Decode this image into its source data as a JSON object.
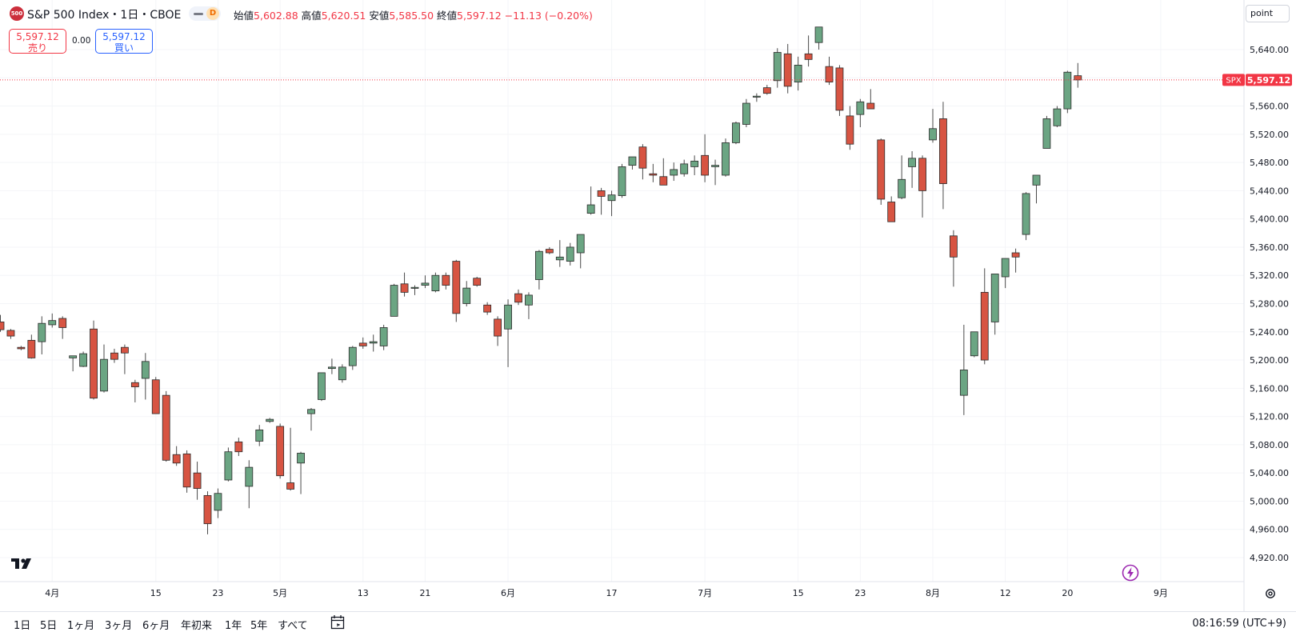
{
  "header": {
    "logo_text": "500",
    "title": "S&P 500 Index・1日・CBOE",
    "interval_badge": "D",
    "ohlc": [
      {
        "label": "始値",
        "value": "5,602.88"
      },
      {
        "label": "高値",
        "value": "5,620.51"
      },
      {
        "label": "安値",
        "value": "5,585.50"
      },
      {
        "label": "終値",
        "value": "5,597.12"
      }
    ],
    "change": "−11.13 (−0.20%)"
  },
  "trade": {
    "sell_price": "5,597.12",
    "sell_label": "売り",
    "spread": "0.00",
    "buy_price": "5,597.12",
    "buy_label": "買い"
  },
  "right_axis": {
    "scale_mode": "point",
    "price_tag_symbol": "SPX",
    "price_tag_value": "5,597.12"
  },
  "bottom_bar": {
    "ranges": [
      "1日",
      "5日",
      "1ヶ月",
      "3ヶ月",
      "6ヶ月",
      "年初来",
      "1年",
      "5年",
      "すべて"
    ],
    "time": "08:16:59 (UTC+9)"
  },
  "icons": {
    "gear": "gear-icon",
    "calendar": "calendar-range-icon",
    "lightning": "lightning-icon",
    "logo": "tradingview-logo-icon"
  },
  "chart_data": {
    "type": "candlestick",
    "symbol": "SPX",
    "up_color": "#6ba583",
    "down_color": "#d75442",
    "last_price": 5597.12,
    "ylim": [
      4900,
      5700
    ],
    "y_ticks": [
      4920,
      4960,
      5000,
      5040,
      5080,
      5120,
      5160,
      5200,
      5240,
      5280,
      5320,
      5360,
      5400,
      5440,
      5480,
      5520,
      5560,
      5600,
      5640
    ],
    "y_tick_labels": [
      "4,920.00",
      "4,960.00",
      "5,000.00",
      "5,040.00",
      "5,080.00",
      "5,120.00",
      "5,160.00",
      "5,200.00",
      "5,240.00",
      "5,280.00",
      "5,320.00",
      "5,360.00",
      "5,400.00",
      "5,440.00",
      "5,480.00",
      "5,520.00",
      "5,560.00",
      "5,600.00",
      "5,640.00"
    ],
    "x_labels": [
      {
        "i": 5,
        "label": "4月"
      },
      {
        "i": 15,
        "label": "15"
      },
      {
        "i": 21,
        "label": "23"
      },
      {
        "i": 27,
        "label": "5月"
      },
      {
        "i": 35,
        "label": "13"
      },
      {
        "i": 41,
        "label": "21"
      },
      {
        "i": 49,
        "label": "6月"
      },
      {
        "i": 59,
        "label": "17"
      },
      {
        "i": 68,
        "label": "7月"
      },
      {
        "i": 77,
        "label": "15"
      },
      {
        "i": 83,
        "label": "23"
      },
      {
        "i": 90,
        "label": "8月"
      },
      {
        "i": 97,
        "label": "12"
      },
      {
        "i": 103,
        "label": "20"
      },
      {
        "i": 112,
        "label": "9月"
      }
    ],
    "candles": [
      {
        "o": 5254,
        "h": 5264,
        "l": 5240,
        "c": 5243
      },
      {
        "o": 5242,
        "h": 5244,
        "l": 5230,
        "c": 5234
      },
      {
        "o": 5218,
        "h": 5220,
        "l": 5214,
        "c": 5216
      },
      {
        "o": 5228,
        "h": 5236,
        "l": 5202,
        "c": 5203
      },
      {
        "o": 5226,
        "h": 5262,
        "l": 5208,
        "c": 5252
      },
      {
        "o": 5250,
        "h": 5266,
        "l": 5246,
        "c": 5256
      },
      {
        "o": 5259,
        "h": 5262,
        "l": 5230,
        "c": 5246
      },
      {
        "o": 5203,
        "h": 5206,
        "l": 5184,
        "c": 5206
      },
      {
        "o": 5191,
        "h": 5212,
        "l": 5190,
        "c": 5209
      },
      {
        "o": 5244,
        "h": 5256,
        "l": 5144,
        "c": 5146
      },
      {
        "o": 5156,
        "h": 5222,
        "l": 5154,
        "c": 5201
      },
      {
        "o": 5210,
        "h": 5216,
        "l": 5196,
        "c": 5201
      },
      {
        "o": 5218,
        "h": 5222,
        "l": 5180,
        "c": 5210
      },
      {
        "o": 5168,
        "h": 5172,
        "l": 5140,
        "c": 5162
      },
      {
        "o": 5174,
        "h": 5210,
        "l": 5144,
        "c": 5198
      },
      {
        "o": 5172,
        "h": 5176,
        "l": 5128,
        "c": 5124
      },
      {
        "o": 5150,
        "h": 5156,
        "l": 5056,
        "c": 5058
      },
      {
        "o": 5066,
        "h": 5078,
        "l": 5050,
        "c": 5054
      },
      {
        "o": 5067,
        "h": 5072,
        "l": 5012,
        "c": 5020
      },
      {
        "o": 5040,
        "h": 5056,
        "l": 5002,
        "c": 5018
      },
      {
        "o": 5008,
        "h": 5014,
        "l": 4953,
        "c": 4968
      },
      {
        "o": 4987,
        "h": 5018,
        "l": 4976,
        "c": 5011
      },
      {
        "o": 5030,
        "h": 5076,
        "l": 5028,
        "c": 5070
      },
      {
        "o": 5084,
        "h": 5090,
        "l": 5064,
        "c": 5070
      },
      {
        "o": 5021,
        "h": 5058,
        "l": 4990,
        "c": 5048
      },
      {
        "o": 5085,
        "h": 5108,
        "l": 5078,
        "c": 5101
      },
      {
        "o": 5113,
        "h": 5118,
        "l": 5111,
        "c": 5116
      },
      {
        "o": 5106,
        "h": 5110,
        "l": 5032,
        "c": 5036
      },
      {
        "o": 5026,
        "h": 5104,
        "l": 5015,
        "c": 5017
      },
      {
        "o": 5054,
        "h": 5070,
        "l": 5010,
        "c": 5068
      },
      {
        "o": 5124,
        "h": 5132,
        "l": 5100,
        "c": 5130
      },
      {
        "o": 5144,
        "h": 5182,
        "l": 5142,
        "c": 5182
      },
      {
        "o": 5188,
        "h": 5202,
        "l": 5180,
        "c": 5190
      },
      {
        "o": 5172,
        "h": 5194,
        "l": 5168,
        "c": 5190
      },
      {
        "o": 5192,
        "h": 5220,
        "l": 5186,
        "c": 5218
      },
      {
        "o": 5224,
        "h": 5232,
        "l": 5216,
        "c": 5220
      },
      {
        "o": 5224,
        "h": 5236,
        "l": 5212,
        "c": 5226
      },
      {
        "o": 5220,
        "h": 5250,
        "l": 5214,
        "c": 5246
      },
      {
        "o": 5262,
        "h": 5308,
        "l": 5262,
        "c": 5306
      },
      {
        "o": 5308,
        "h": 5324,
        "l": 5290,
        "c": 5296
      },
      {
        "o": 5303,
        "h": 5306,
        "l": 5292,
        "c": 5303
      },
      {
        "o": 5306,
        "h": 5320,
        "l": 5302,
        "c": 5309
      },
      {
        "o": 5298,
        "h": 5324,
        "l": 5296,
        "c": 5320
      },
      {
        "o": 5320,
        "h": 5324,
        "l": 5300,
        "c": 5306
      },
      {
        "o": 5340,
        "h": 5342,
        "l": 5254,
        "c": 5266
      },
      {
        "o": 5280,
        "h": 5312,
        "l": 5276,
        "c": 5302
      },
      {
        "o": 5316,
        "h": 5318,
        "l": 5304,
        "c": 5306
      },
      {
        "o": 5278,
        "h": 5282,
        "l": 5264,
        "c": 5268
      },
      {
        "o": 5258,
        "h": 5262,
        "l": 5220,
        "c": 5234
      },
      {
        "o": 5244,
        "h": 5286,
        "l": 5190,
        "c": 5278
      },
      {
        "o": 5294,
        "h": 5300,
        "l": 5278,
        "c": 5282
      },
      {
        "o": 5278,
        "h": 5296,
        "l": 5258,
        "c": 5292
      },
      {
        "o": 5314,
        "h": 5356,
        "l": 5300,
        "c": 5354
      },
      {
        "o": 5357,
        "h": 5360,
        "l": 5350,
        "c": 5352
      },
      {
        "o": 5342,
        "h": 5370,
        "l": 5332,
        "c": 5346
      },
      {
        "o": 5340,
        "h": 5366,
        "l": 5334,
        "c": 5360
      },
      {
        "o": 5352,
        "h": 5376,
        "l": 5330,
        "c": 5378
      },
      {
        "o": 5408,
        "h": 5446,
        "l": 5406,
        "c": 5420
      },
      {
        "o": 5440,
        "h": 5444,
        "l": 5406,
        "c": 5432
      },
      {
        "o": 5426,
        "h": 5440,
        "l": 5404,
        "c": 5434
      },
      {
        "o": 5433,
        "h": 5478,
        "l": 5430,
        "c": 5474
      },
      {
        "o": 5476,
        "h": 5488,
        "l": 5470,
        "c": 5488
      },
      {
        "o": 5502,
        "h": 5506,
        "l": 5456,
        "c": 5472
      },
      {
        "o": 5464,
        "h": 5478,
        "l": 5452,
        "c": 5462
      },
      {
        "o": 5460,
        "h": 5486,
        "l": 5448,
        "c": 5448
      },
      {
        "o": 5462,
        "h": 5480,
        "l": 5454,
        "c": 5470
      },
      {
        "o": 5464,
        "h": 5484,
        "l": 5460,
        "c": 5478
      },
      {
        "o": 5474,
        "h": 5490,
        "l": 5462,
        "c": 5482
      },
      {
        "o": 5490,
        "h": 5520,
        "l": 5452,
        "c": 5462
      },
      {
        "o": 5474,
        "h": 5484,
        "l": 5448,
        "c": 5476
      },
      {
        "o": 5462,
        "h": 5514,
        "l": 5460,
        "c": 5508
      },
      {
        "o": 5508,
        "h": 5538,
        "l": 5506,
        "c": 5536
      },
      {
        "o": 5534,
        "h": 5570,
        "l": 5530,
        "c": 5564
      },
      {
        "o": 5574,
        "h": 5578,
        "l": 5566,
        "c": 5574
      },
      {
        "o": 5586,
        "h": 5590,
        "l": 5576,
        "c": 5578
      },
      {
        "o": 5596,
        "h": 5642,
        "l": 5586,
        "c": 5636
      },
      {
        "o": 5634,
        "h": 5648,
        "l": 5578,
        "c": 5588
      },
      {
        "o": 5594,
        "h": 5630,
        "l": 5582,
        "c": 5618
      },
      {
        "o": 5634,
        "h": 5660,
        "l": 5616,
        "c": 5626
      },
      {
        "o": 5650,
        "h": 5670,
        "l": 5640,
        "c": 5672
      },
      {
        "o": 5616,
        "h": 5630,
        "l": 5590,
        "c": 5594
      },
      {
        "o": 5614,
        "h": 5618,
        "l": 5546,
        "c": 5554
      },
      {
        "o": 5546,
        "h": 5560,
        "l": 5498,
        "c": 5506
      },
      {
        "o": 5548,
        "h": 5570,
        "l": 5530,
        "c": 5566
      },
      {
        "o": 5564,
        "h": 5584,
        "l": 5556,
        "c": 5556
      },
      {
        "o": 5512,
        "h": 5514,
        "l": 5420,
        "c": 5428
      },
      {
        "o": 5424,
        "h": 5432,
        "l": 5396,
        "c": 5396
      },
      {
        "o": 5430,
        "h": 5490,
        "l": 5428,
        "c": 5456
      },
      {
        "o": 5474,
        "h": 5496,
        "l": 5444,
        "c": 5486
      },
      {
        "o": 5486,
        "h": 5490,
        "l": 5402,
        "c": 5440
      },
      {
        "o": 5512,
        "h": 5556,
        "l": 5508,
        "c": 5528
      },
      {
        "o": 5542,
        "h": 5566,
        "l": 5414,
        "c": 5450
      },
      {
        "o": 5376,
        "h": 5384,
        "l": 5304,
        "c": 5346
      },
      {
        "o": 5150,
        "h": 5250,
        "l": 5122,
        "c": 5186
      },
      {
        "o": 5206,
        "h": 5240,
        "l": 5204,
        "c": 5240
      },
      {
        "o": 5296,
        "h": 5330,
        "l": 5194,
        "c": 5200
      },
      {
        "o": 5254,
        "h": 5320,
        "l": 5236,
        "c": 5322
      },
      {
        "o": 5318,
        "h": 5344,
        "l": 5302,
        "c": 5344
      },
      {
        "o": 5352,
        "h": 5358,
        "l": 5324,
        "c": 5346
      },
      {
        "o": 5378,
        "h": 5438,
        "l": 5370,
        "c": 5436
      },
      {
        "o": 5448,
        "h": 5460,
        "l": 5422,
        "c": 5462
      },
      {
        "o": 5500,
        "h": 5546,
        "l": 5500,
        "c": 5542
      },
      {
        "o": 5532,
        "h": 5560,
        "l": 5530,
        "c": 5556
      },
      {
        "o": 5556,
        "h": 5610,
        "l": 5550,
        "c": 5608
      },
      {
        "o": 5603,
        "h": 5621,
        "l": 5586,
        "c": 5597
      }
    ]
  }
}
